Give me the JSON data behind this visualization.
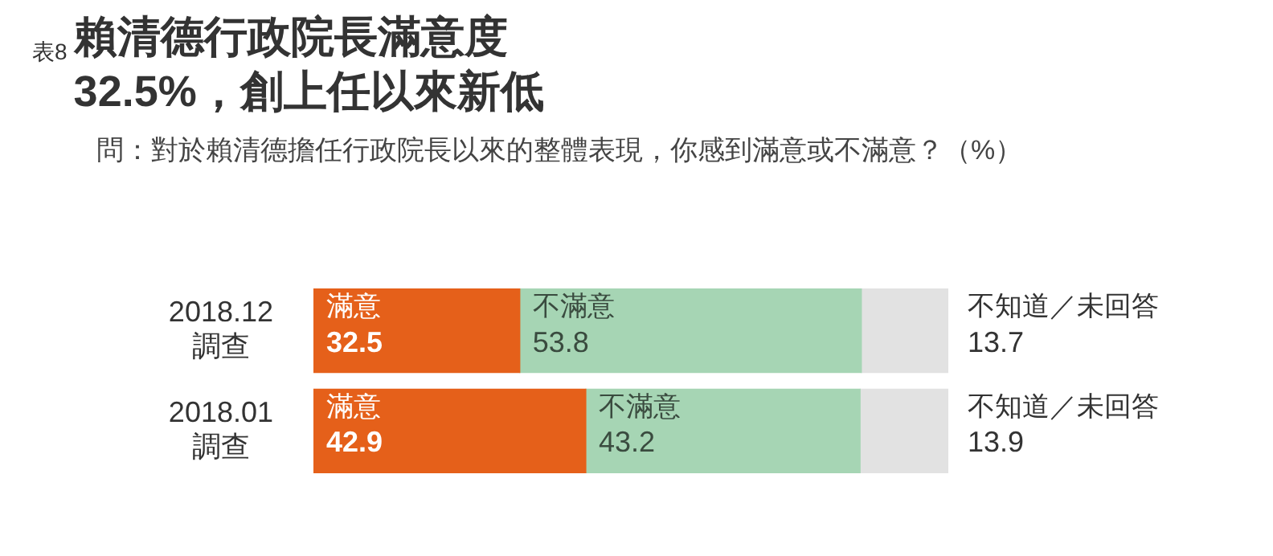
{
  "chart_data": {
    "type": "bar",
    "orientation": "horizontal",
    "stacked": true,
    "title": "賴清德行政院長滿意度32.5%，創上任以來新低",
    "subtitle": "問：對於賴清德擔任行政院長以來的整體表現，你感到滿意或不滿意？（%）",
    "annotations": [
      "表8"
    ],
    "categories": [
      "2018.12\n調查",
      "2018.01\n調查"
    ],
    "series": [
      {
        "name": "滿意",
        "color": "#e5601a",
        "values": [
          32.5,
          42.9
        ]
      },
      {
        "name": "不滿意",
        "color": "#a6d5b4",
        "values": [
          53.8,
          43.2
        ]
      },
      {
        "name": "不知道／未回答",
        "color": "#e2e2e2",
        "values": [
          13.7,
          13.9
        ]
      }
    ],
    "xlim": [
      0,
      100
    ],
    "tick_labels": "y",
    "data_labels": true,
    "legend": false,
    "grid": false
  }
}
